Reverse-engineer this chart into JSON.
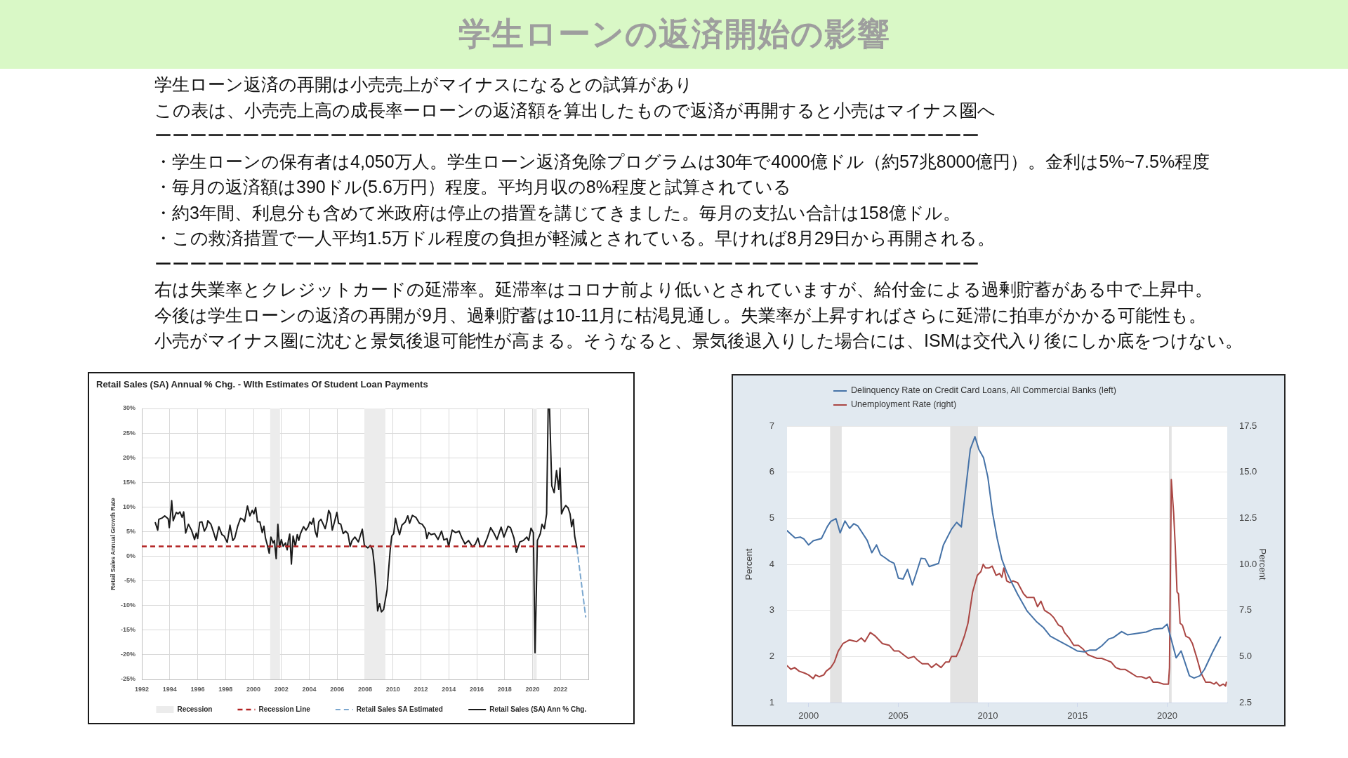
{
  "chart_data": [
    {
      "type": "other",
      "title": "学生ローンの返済開始の影響",
      "annotations": [
        "学生ローン返済の再開は小売売上がマイナスになるとの試算があり",
        "この表は、小売売上高の成長率ーローンの返済額を算出したもので返済が再開すると小売はマイナス圏へ",
        "ーーーーーーーーーーーーーーーーーーーーーーーーーーーーーーーーーーーーーーーーーーーーーーー",
        "・学生ローンの保有者は4,050万人。学生ローン返済免除プログラムは30年で4000億ドル（約57兆8000億円）。金利は5%~7.5%程度",
        "・毎月の返済額は390ドル(5.6万円）程度。平均月収の8%程度と試算されている",
        "・約3年間、利息分も含めて米政府は停止の措置を講じてきました。毎月の支払い合計は158億ドル。",
        "・この救済措置で一人平均1.5万ドル程度の負担が軽減とされている。早ければ8月29日から再開される。",
        "ーーーーーーーーーーーーーーーーーーーーーーーーーーーーーーーーーーーーーーーーーーーーーーー",
        "右は失業率とクレジットカードの延滞率。延滞率はコロナ前より低いとされていますが、給付金による過剰貯蓄がある中で上昇中。",
        "今後は学生ローンの返済の再開が9月、過剰貯蓄は10-11月に枯渇見通し。失業率が上昇すればさらに延滞に拍車がかかる可能性も。",
        "小売がマイナス圏に沈むと景気後退可能性が高まる。そうなると、景気後退入りした場合には、ISMは交代入り後にしか底をつけない。"
      ]
    },
    {
      "type": "line",
      "title": "Retail Sales (SA) Annual % Chg. - WIth Estimates Of Student Loan Payments",
      "ylabel": "Retail Sales Annual Growth Rate",
      "xlim": [
        1992,
        2024
      ],
      "xticks": [
        1992,
        1994,
        1996,
        1998,
        2000,
        2002,
        2004,
        2006,
        2008,
        2010,
        2012,
        2014,
        2016,
        2018,
        2020,
        2022
      ],
      "ylim": [
        -25,
        30
      ],
      "yticks": [
        {
          "value": -25,
          "label": "-25%"
        },
        {
          "value": -20,
          "label": "-20%"
        },
        {
          "value": -15,
          "label": "-15%"
        },
        {
          "value": -10,
          "label": "-10%"
        },
        {
          "value": -5,
          "label": "-5%"
        },
        {
          "value": 0,
          "label": "0%"
        },
        {
          "value": 5,
          "label": "5%"
        },
        {
          "value": 10,
          "label": "10%"
        },
        {
          "value": 15,
          "label": "15%"
        },
        {
          "value": 20,
          "label": "20%"
        },
        {
          "value": 25,
          "label": "25%"
        },
        {
          "value": 30,
          "label": "30%"
        }
      ],
      "grid": true,
      "legend": "bottom",
      "bands": [
        {
          "axis": "x",
          "from": 2001.2,
          "to": 2001.9,
          "label": "Recession",
          "color": "#ececec"
        },
        {
          "axis": "x",
          "from": 2007.95,
          "to": 2009.45,
          "color": "#ececec"
        },
        {
          "axis": "x",
          "from": 2020.05,
          "to": 2020.3,
          "color": "#ececec"
        }
      ],
      "ref_lines": [
        {
          "axis": "y",
          "value": 2,
          "label": "Recession Line",
          "color": "#b22222",
          "line_style": "dashed"
        }
      ],
      "series": [
        {
          "name": "Retail Sales SA Estimated",
          "color": "#7ba7cf",
          "line_style": "dashed",
          "x": [
            2023.19,
            2023.81
          ],
          "values": [
            1.5,
            -12.3
          ]
        },
        {
          "name": "Retail Sales (SA) Ann % Chg.",
          "color": "#1a1a1a",
          "x": [
            1992.97,
            1993.14,
            1993.22,
            1993.47,
            1993.64,
            1993.89,
            1993.97,
            1994.06,
            1994.14,
            1994.25,
            1994.35,
            1994.47,
            1994.6,
            1994.73,
            1994.89,
            1995.0,
            1995.14,
            1995.34,
            1995.56,
            1995.78,
            1995.9,
            1996.0,
            1996.15,
            1996.31,
            1996.48,
            1996.65,
            1996.73,
            1996.95,
            1997.15,
            1997.32,
            1997.52,
            1997.74,
            1997.9,
            1998.12,
            1998.32,
            1998.52,
            1998.66,
            1998.86,
            1999.07,
            1999.24,
            1999.36,
            1999.57,
            1999.74,
            1999.91,
            2000.03,
            2000.16,
            2000.29,
            2000.46,
            2000.63,
            2000.75,
            2000.86,
            2001.0,
            2001.13,
            2001.25,
            2001.41,
            2001.5,
            2001.63,
            2001.75,
            2001.87,
            2002.0,
            2002.13,
            2002.3,
            2002.42,
            2002.5,
            2002.6,
            2002.72,
            2002.84,
            2003.0,
            2003.14,
            2003.25,
            2003.37,
            2003.59,
            2003.76,
            2003.92,
            2004.04,
            2004.17,
            2004.3,
            2004.42,
            2004.56,
            2004.68,
            2004.84,
            2005.0,
            2005.14,
            2005.26,
            2005.39,
            2005.51,
            2005.65,
            2005.81,
            2005.98,
            2006.1,
            2006.26,
            2006.43,
            2006.6,
            2006.77,
            2006.93,
            2007.07,
            2007.27,
            2007.52,
            2007.8,
            2007.95,
            2008.2,
            2008.37,
            2008.54,
            2008.67,
            2008.79,
            2008.9,
            2009.04,
            2009.17,
            2009.33,
            2009.46,
            2009.58,
            2009.68,
            2009.8,
            2009.91,
            2010.05,
            2010.18,
            2010.35,
            2010.47,
            2010.64,
            2010.89,
            2011.06,
            2011.19,
            2011.39,
            2011.64,
            2011.89,
            2012.09,
            2012.31,
            2012.43,
            2012.56,
            2012.73,
            2012.98,
            2013.23,
            2013.48,
            2013.65,
            2013.87,
            2013.99,
            2014.24,
            2014.49,
            2014.74,
            2014.94,
            2015.16,
            2015.41,
            2015.71,
            2015.91,
            2016.08,
            2016.25,
            2016.5,
            2016.75,
            2017.0,
            2017.25,
            2017.45,
            2017.75,
            2017.95,
            2018.25,
            2018.42,
            2018.67,
            2018.84,
            2019.09,
            2019.34,
            2019.59,
            2019.73,
            2019.89,
            2020.06,
            2020.18,
            2020.35,
            2020.56,
            2020.68,
            2020.85,
            2021.01,
            2021.12,
            2021.22,
            2021.38,
            2021.55,
            2021.72,
            2021.88,
            2021.97,
            2022.08,
            2022.22,
            2022.38,
            2022.55,
            2022.69,
            2022.8,
            2022.92,
            2023.02,
            2023.19
          ],
          "values": [
            6.8,
            5.3,
            7.5,
            7.8,
            8.2,
            7.6,
            5.8,
            8.5,
            11.3,
            7.2,
            8.0,
            8.9,
            8.6,
            9.0,
            7.9,
            9.0,
            4.7,
            6.5,
            5.3,
            3.4,
            4.7,
            3.6,
            6.9,
            7.0,
            5.1,
            6.0,
            7.2,
            6.5,
            4.8,
            3.2,
            6.0,
            4.4,
            4.1,
            2.8,
            6.3,
            3.2,
            3.7,
            6.0,
            7.7,
            7.5,
            7.0,
            10.2,
            8.2,
            9.3,
            8.6,
            9.9,
            7.0,
            7.0,
            4.8,
            6.1,
            3.7,
            2.2,
            0.6,
            3.9,
            2.7,
            3.2,
            -0.5,
            6.5,
            1.8,
            3.4,
            2.0,
            2.7,
            1.3,
            3.2,
            4.5,
            -1.6,
            4.1,
            2.0,
            4.4,
            3.2,
            4.6,
            6.0,
            5.3,
            6.0,
            7.0,
            6.5,
            7.7,
            5.1,
            3.9,
            7.0,
            7.5,
            6.5,
            5.6,
            7.0,
            9.3,
            8.6,
            5.3,
            7.0,
            8.9,
            6.7,
            6.5,
            4.6,
            5.1,
            4.6,
            2.0,
            3.2,
            3.9,
            2.9,
            5.5,
            2.2,
            1.7,
            2.2,
            1.3,
            -2.0,
            -6.3,
            -11.1,
            -9.6,
            -11.3,
            -10.8,
            -8.7,
            -6.8,
            -3.0,
            1.3,
            4.1,
            4.6,
            7.7,
            5.6,
            4.4,
            6.3,
            7.0,
            8.2,
            6.7,
            8.3,
            7.9,
            6.7,
            6.5,
            5.6,
            3.6,
            4.8,
            4.4,
            4.6,
            3.4,
            5.1,
            3.3,
            3.6,
            2.0,
            5.3,
            4.8,
            5.1,
            3.7,
            2.5,
            3.2,
            1.9,
            2.5,
            3.7,
            2.0,
            2.0,
            3.7,
            5.8,
            4.6,
            3.4,
            5.9,
            3.9,
            6.1,
            5.8,
            3.7,
            0.8,
            2.9,
            3.2,
            3.9,
            3.2,
            5.7,
            4.8,
            -19.6,
            3.2,
            4.6,
            6.5,
            5.6,
            8.6,
            30,
            30,
            14.3,
            12.9,
            17.4,
            13.6,
            17.9,
            8.6,
            9.6,
            10.3,
            9.8,
            8.6,
            6.0,
            7.5,
            4.1,
            1.5
          ]
        }
      ]
    },
    {
      "type": "line",
      "ylabel": "Percent",
      "y2label": "Percent",
      "xlim": [
        1998.8,
        2023.35
      ],
      "xticks": [
        2000,
        2005,
        2010,
        2015,
        2020
      ],
      "ylim": [
        1,
        7
      ],
      "yticks": [
        1,
        2,
        3,
        4,
        5,
        6,
        7
      ],
      "y2lim": [
        2.5,
        17.5
      ],
      "y2ticks": [
        2.5,
        {
          "value": 5,
          "label": "5.0"
        },
        7.5,
        {
          "value": 10,
          "label": "10.0"
        },
        12.5,
        {
          "value": 15,
          "label": "15.0"
        },
        17.5
      ],
      "grid": "y",
      "legend": "top left",
      "bands": [
        {
          "axis": "x",
          "from": 2001.2,
          "to": 2001.85,
          "color": "#e3e3e3"
        },
        {
          "axis": "x",
          "from": 2007.9,
          "to": 2009.45,
          "color": "#e3e3e3"
        },
        {
          "axis": "x",
          "from": 2020.1,
          "to": 2020.25,
          "color": "#e3e3e3"
        }
      ],
      "series": [
        {
          "name": "Delinquency Rate on Credit Card Loans, All Commercial Banks (left)",
          "color": "#4572a7",
          "x": [
            1998.8,
            1999.25,
            1999.54,
            1999.74,
            2000.0,
            2000.26,
            2000.72,
            2001.05,
            2001.24,
            2001.53,
            2001.76,
            2002.03,
            2002.29,
            2002.52,
            2002.75,
            2003.27,
            2003.53,
            2003.79,
            2004.01,
            2004.31,
            2004.51,
            2004.77,
            2005.01,
            2005.27,
            2005.52,
            2005.79,
            2006.01,
            2006.27,
            2006.5,
            2006.73,
            2007.25,
            2007.52,
            2007.97,
            2008.26,
            2008.52,
            2009.02,
            2009.28,
            2009.5,
            2009.76,
            2010.0,
            2010.26,
            2010.52,
            2010.78,
            2011.05,
            2011.27,
            2011.66,
            2012.18,
            2012.7,
            2013.09,
            2013.48,
            2014.0,
            2014.53,
            2014.98,
            2015.37,
            2015.7,
            2016.03,
            2016.35,
            2016.74,
            2017.0,
            2017.46,
            2017.78,
            2018.31,
            2018.83,
            2019.22,
            2019.74,
            2020.0,
            2020.5,
            2020.78,
            2021.24,
            2021.5,
            2021.82,
            2022.08,
            2022.54,
            2022.97
          ],
          "values": [
            4.73,
            4.57,
            4.59,
            4.55,
            4.42,
            4.51,
            4.56,
            4.82,
            4.93,
            4.99,
            4.68,
            4.94,
            4.78,
            4.88,
            4.83,
            4.52,
            4.25,
            4.42,
            4.21,
            4.13,
            4.07,
            4.02,
            3.7,
            3.68,
            3.89,
            3.55,
            3.81,
            4.13,
            4.12,
            3.95,
            4.02,
            4.42,
            4.76,
            4.91,
            4.81,
            6.5,
            6.77,
            6.49,
            6.31,
            5.89,
            5.12,
            4.56,
            4.11,
            3.83,
            3.65,
            3.35,
            2.99,
            2.76,
            2.63,
            2.44,
            2.33,
            2.22,
            2.12,
            2.1,
            2.14,
            2.14,
            2.23,
            2.38,
            2.41,
            2.54,
            2.47,
            2.5,
            2.53,
            2.59,
            2.61,
            2.7,
            1.97,
            2.12,
            1.58,
            1.53,
            1.58,
            1.72,
            2.1,
            2.42
          ]
        },
        {
          "name": "Unemployment Rate (right)",
          "color": "#aa4643",
          "axis": "y2",
          "x": [
            1998.8,
            1999.02,
            1999.22,
            1999.48,
            1999.78,
            2000.0,
            2000.26,
            2000.39,
            2000.59,
            2000.85,
            2000.98,
            2001.24,
            2001.44,
            2001.66,
            2001.92,
            2002.29,
            2002.68,
            2002.94,
            2003.14,
            2003.44,
            2003.73,
            2004.12,
            2004.51,
            2004.77,
            2005.03,
            2005.29,
            2005.56,
            2005.88,
            2006.08,
            2006.34,
            2006.67,
            2006.86,
            2007.12,
            2007.39,
            2007.65,
            2007.84,
            2007.97,
            2008.24,
            2008.43,
            2008.69,
            2008.89,
            2009.15,
            2009.41,
            2009.61,
            2009.74,
            2009.87,
            2010.07,
            2010.24,
            2010.46,
            2010.65,
            2010.78,
            2010.89,
            2011.05,
            2011.24,
            2011.4,
            2011.66,
            2011.99,
            2012.18,
            2012.57,
            2012.77,
            2012.96,
            2013.16,
            2013.48,
            2013.68,
            2013.94,
            2014.14,
            2014.27,
            2014.53,
            2014.79,
            2015.05,
            2015.31,
            2015.57,
            2015.83,
            2016.09,
            2016.35,
            2016.61,
            2016.87,
            2017.13,
            2017.39,
            2017.65,
            2017.98,
            2018.31,
            2018.57,
            2018.83,
            2019.02,
            2019.22,
            2019.48,
            2019.8,
            2020.07,
            2020.13,
            2020.23,
            2020.36,
            2020.45,
            2020.55,
            2020.63,
            2020.72,
            2020.85,
            2021.04,
            2021.24,
            2021.41,
            2021.63,
            2021.89,
            2022.15,
            2022.41,
            2022.61,
            2022.74,
            2022.93,
            2023.13,
            2023.26,
            2023.3
          ],
          "values": [
            4.5,
            4.3,
            4.4,
            4.2,
            4.1,
            4.0,
            3.8,
            4.0,
            3.9,
            4.0,
            4.2,
            4.4,
            4.7,
            5.3,
            5.7,
            5.9,
            5.8,
            6.0,
            5.8,
            6.3,
            6.1,
            5.7,
            5.6,
            5.3,
            5.3,
            5.1,
            4.9,
            5.0,
            4.8,
            4.6,
            4.6,
            4.4,
            4.6,
            4.4,
            4.7,
            4.7,
            5.0,
            5.0,
            5.4,
            6.1,
            6.8,
            8.5,
            9.4,
            9.6,
            10.0,
            9.8,
            9.8,
            9.9,
            9.4,
            9.5,
            9.3,
            9.8,
            9.1,
            9.0,
            9.1,
            9.0,
            8.4,
            8.2,
            8.2,
            7.7,
            8.0,
            7.5,
            7.3,
            7.1,
            6.7,
            6.6,
            6.3,
            6.0,
            5.6,
            5.6,
            5.4,
            5.1,
            5.0,
            4.9,
            4.9,
            4.8,
            4.7,
            4.4,
            4.3,
            4.3,
            4.1,
            3.9,
            3.9,
            3.8,
            3.9,
            3.6,
            3.6,
            3.5,
            3.5,
            4.4,
            14.6,
            12.8,
            11.0,
            8.5,
            8.4,
            6.8,
            6.7,
            6.1,
            6.0,
            5.7,
            5.0,
            4.1,
            3.6,
            3.6,
            3.5,
            3.6,
            3.4,
            3.5,
            3.4,
            3.6
          ]
        }
      ]
    }
  ]
}
